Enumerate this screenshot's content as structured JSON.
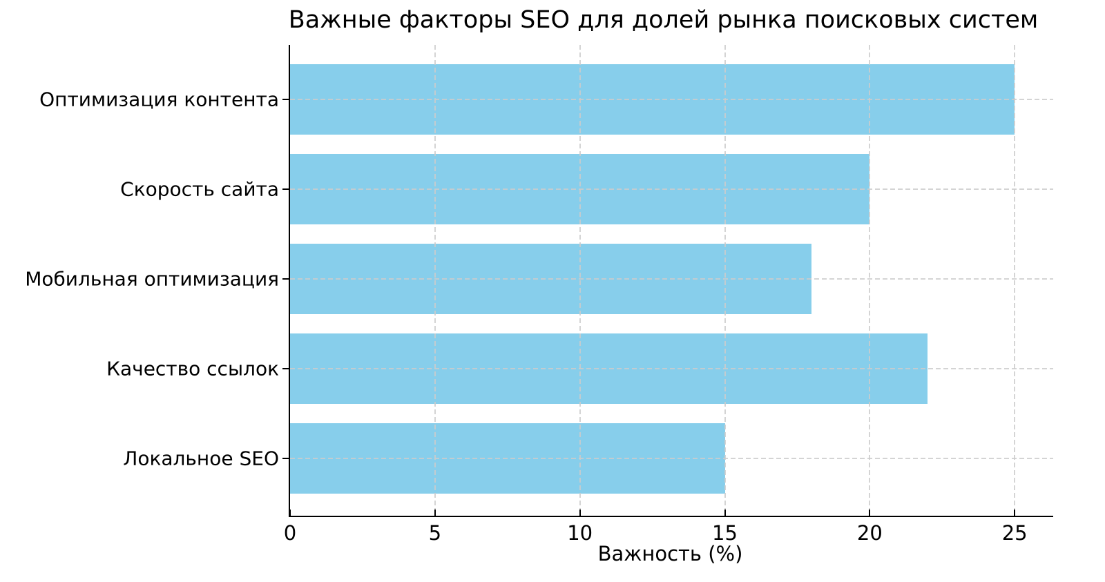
{
  "chart_data": {
    "type": "bar",
    "orientation": "horizontal",
    "title": "Важные факторы SEO для долей рынка поисковых систем",
    "categories": [
      "Оптимизация контента",
      "Скорость сайта",
      "Мобильная оптимизация",
      "Качество ссылок",
      "Локальное SEO"
    ],
    "values": [
      25,
      20,
      18,
      22,
      15
    ],
    "xlabel": "Важность (%)",
    "ylabel": "",
    "xticks": [
      0,
      5,
      10,
      15,
      20,
      25
    ],
    "xtick_labels": [
      "0",
      "5",
      "10",
      "15",
      "20",
      "25"
    ],
    "xlim": [
      0,
      26.33
    ],
    "grid": true,
    "grid_style": "dashed",
    "legend": "none",
    "bar_color": "#87CEEB",
    "grid_color": "#cccccc",
    "axis_color": "#000000",
    "text_color": "#000000"
  }
}
